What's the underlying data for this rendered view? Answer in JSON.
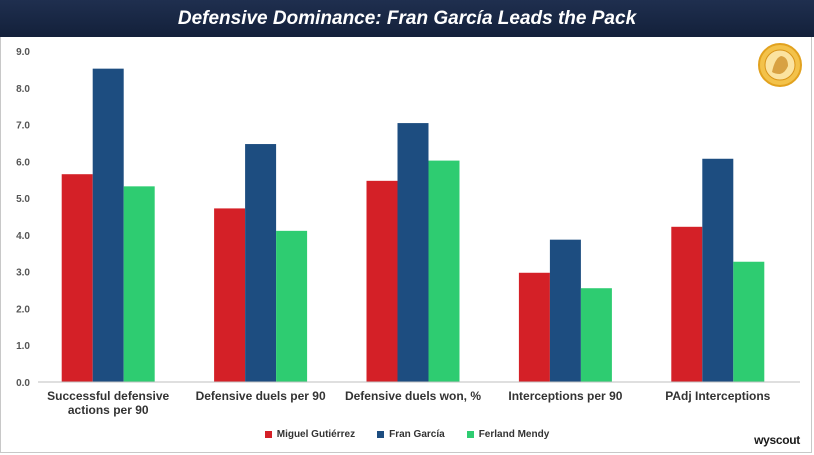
{
  "chart_data": {
    "type": "bar",
    "title": "Defensive Dominance: Fran García Leads the Pack",
    "categories": [
      [
        "Successful defensive",
        "actions per 90"
      ],
      [
        "Defensive duels per 90"
      ],
      [
        "Defensive duels won, %"
      ],
      [
        "Interceptions per 90"
      ],
      [
        "PAdj Interceptions"
      ]
    ],
    "series": [
      {
        "name": "Miguel Gutiérrez",
        "color": "#d42027",
        "values": [
          5.65,
          4.72,
          5.47,
          2.97,
          4.22
        ]
      },
      {
        "name": "Fran García",
        "color": "#1d4d80",
        "values": [
          8.52,
          6.47,
          7.04,
          3.87,
          6.07
        ]
      },
      {
        "name": "Ferland Mendy",
        "color": "#2ecc71",
        "values": [
          5.32,
          4.11,
          6.02,
          2.55,
          3.27
        ]
      }
    ],
    "yticks": [
      "0.0",
      "1.0",
      "2.0",
      "3.0",
      "4.0",
      "5.0",
      "6.0",
      "7.0",
      "8.0",
      "9.0"
    ],
    "ylim": [
      0,
      9
    ],
    "grid": false,
    "legend_position": "bottom"
  },
  "source_label": "wyscout",
  "logo_icon": "club-crest-icon"
}
